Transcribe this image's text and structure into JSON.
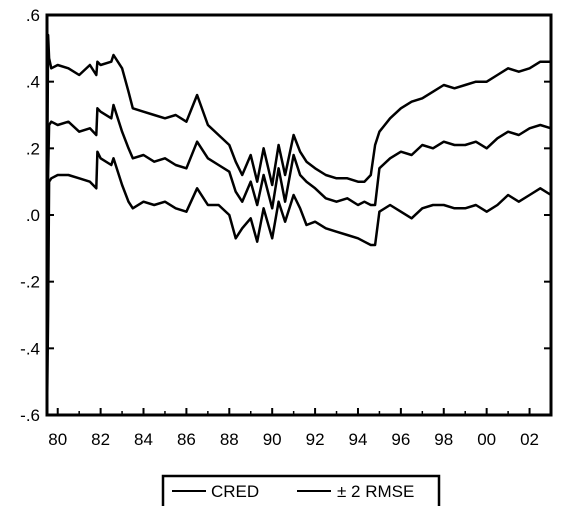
{
  "chart_data": {
    "type": "line",
    "title": "",
    "xlabel": "",
    "ylabel": "",
    "xlim": [
      1979.5,
      2003.0
    ],
    "ylim": [
      -0.6,
      0.6
    ],
    "x_tick_labels": [
      "80",
      "82",
      "84",
      "86",
      "88",
      "90",
      "92",
      "94",
      "96",
      "98",
      "00",
      "02"
    ],
    "x_tick_positions": [
      1980,
      1982,
      1984,
      1986,
      1988,
      1990,
      1992,
      1994,
      1996,
      1998,
      2000,
      2002
    ],
    "y_tick_labels": [
      ".6",
      ".4",
      ".2",
      ".0",
      "-.2",
      "-.4",
      "-.6"
    ],
    "y_tick_values": [
      0.6,
      0.4,
      0.2,
      0.0,
      -0.2,
      -0.4,
      -0.6
    ],
    "grid": false,
    "legend_position": "bottom-center",
    "legend": [
      {
        "label": "CRED",
        "style": "solid"
      },
      {
        "label": "± 2 RMSE",
        "style": "solid"
      }
    ],
    "x": [
      1979.5,
      1979.55,
      1979.6,
      1979.7,
      1980.0,
      1980.5,
      1981.0,
      1981.5,
      1981.8,
      1981.85,
      1982.0,
      1982.5,
      1982.6,
      1983.0,
      1983.3,
      1983.5,
      1984.0,
      1984.5,
      1985.0,
      1985.5,
      1986.0,
      1986.5,
      1987.0,
      1987.5,
      1988.0,
      1988.3,
      1988.6,
      1989.0,
      1989.3,
      1989.6,
      1990.0,
      1990.3,
      1990.6,
      1991.0,
      1991.3,
      1991.6,
      1992.0,
      1992.5,
      1993.0,
      1993.5,
      1994.0,
      1994.3,
      1994.6,
      1994.8,
      1995.0,
      1995.5,
      1996.0,
      1996.5,
      1997.0,
      1997.5,
      1998.0,
      1998.5,
      1999.0,
      1999.5,
      2000.0,
      2000.5,
      2001.0,
      2001.5,
      2002.0,
      2002.5,
      2003.0
    ],
    "series": [
      {
        "name": "CRED",
        "values": [
          -0.34,
          0.12,
          0.27,
          0.28,
          0.27,
          0.28,
          0.25,
          0.26,
          0.24,
          0.32,
          0.31,
          0.29,
          0.33,
          0.25,
          0.2,
          0.17,
          0.18,
          0.16,
          0.17,
          0.15,
          0.14,
          0.22,
          0.17,
          0.15,
          0.13,
          0.07,
          0.04,
          0.1,
          0.03,
          0.12,
          0.02,
          0.14,
          0.04,
          0.18,
          0.12,
          0.1,
          0.08,
          0.05,
          0.04,
          0.05,
          0.03,
          0.04,
          0.03,
          0.03,
          0.14,
          0.17,
          0.19,
          0.18,
          0.21,
          0.2,
          0.22,
          0.21,
          0.21,
          0.22,
          0.2,
          0.23,
          0.25,
          0.24,
          0.26,
          0.27,
          0.26
        ]
      },
      {
        "name": "",
        "values": [
          0.0,
          0.54,
          0.47,
          0.44,
          0.45,
          0.44,
          0.42,
          0.45,
          0.42,
          0.46,
          0.45,
          0.46,
          0.48,
          0.44,
          0.37,
          0.32,
          0.31,
          0.3,
          0.29,
          0.3,
          0.28,
          0.36,
          0.27,
          0.24,
          0.21,
          0.16,
          0.12,
          0.18,
          0.1,
          0.2,
          0.09,
          0.21,
          0.12,
          0.24,
          0.19,
          0.16,
          0.14,
          0.12,
          0.11,
          0.11,
          0.1,
          0.1,
          0.12,
          0.21,
          0.25,
          0.29,
          0.32,
          0.34,
          0.35,
          0.37,
          0.39,
          0.38,
          0.39,
          0.4,
          0.4,
          0.42,
          0.44,
          0.43,
          0.44,
          0.46,
          0.46
        ]
      },
      {
        "name": "",
        "values": [
          -0.6,
          -0.3,
          0.1,
          0.11,
          0.12,
          0.12,
          0.11,
          0.1,
          0.08,
          0.19,
          0.17,
          0.15,
          0.17,
          0.09,
          0.04,
          0.02,
          0.04,
          0.03,
          0.04,
          0.02,
          0.01,
          0.08,
          0.03,
          0.03,
          0.0,
          -0.07,
          -0.04,
          -0.01,
          -0.08,
          0.02,
          -0.07,
          0.04,
          -0.02,
          0.06,
          0.02,
          -0.03,
          -0.02,
          -0.04,
          -0.05,
          -0.06,
          -0.07,
          -0.08,
          -0.09,
          -0.09,
          0.01,
          0.03,
          0.01,
          -0.01,
          0.02,
          0.03,
          0.03,
          0.02,
          0.02,
          0.03,
          0.01,
          0.03,
          0.06,
          0.04,
          0.06,
          0.08,
          0.06
        ]
      }
    ]
  }
}
